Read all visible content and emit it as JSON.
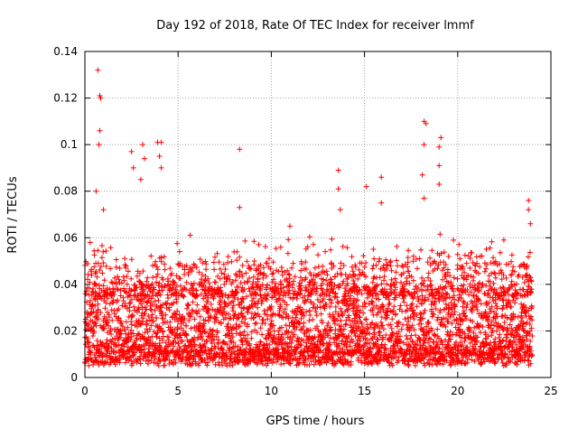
{
  "chart_data": {
    "type": "scatter",
    "title": "Day 192 of 2018, Rate Of TEC Index for receiver lmmf",
    "xlabel": "GPS time / hours",
    "ylabel": "ROTI / TECUs",
    "xlim": [
      0,
      25
    ],
    "ylim": [
      0,
      0.14
    ],
    "x_ticks": [
      0,
      5,
      10,
      15,
      20,
      25
    ],
    "x_tick_labels": [
      "0",
      "5",
      "10",
      "15",
      "20",
      "25"
    ],
    "y_ticks": [
      0,
      0.02,
      0.04,
      0.06,
      0.08,
      0.1,
      0.12,
      0.14
    ],
    "y_tick_labels": [
      "0",
      "0.02",
      "0.04",
      "0.06",
      "0.08",
      "0.1",
      "0.12",
      "0.14"
    ],
    "grid": true,
    "marker": "+",
    "marker_color": "#ff0000",
    "x_data_range": [
      0,
      24
    ],
    "baseline_range": [
      0.005,
      0.035
    ],
    "series": [
      {
        "name": "ROTI",
        "notable_points": [
          {
            "x": 0.7,
            "y": 0.132
          },
          {
            "x": 0.8,
            "y": 0.121
          },
          {
            "x": 0.85,
            "y": 0.12
          },
          {
            "x": 0.8,
            "y": 0.106
          },
          {
            "x": 0.75,
            "y": 0.1
          },
          {
            "x": 0.6,
            "y": 0.08
          },
          {
            "x": 1.0,
            "y": 0.072
          },
          {
            "x": 2.5,
            "y": 0.097
          },
          {
            "x": 2.6,
            "y": 0.09
          },
          {
            "x": 3.1,
            "y": 0.1
          },
          {
            "x": 3.2,
            "y": 0.094
          },
          {
            "x": 3.0,
            "y": 0.085
          },
          {
            "x": 3.9,
            "y": 0.101
          },
          {
            "x": 4.1,
            "y": 0.101
          },
          {
            "x": 4.0,
            "y": 0.095
          },
          {
            "x": 4.1,
            "y": 0.09
          },
          {
            "x": 8.3,
            "y": 0.098
          },
          {
            "x": 8.3,
            "y": 0.073
          },
          {
            "x": 11.0,
            "y": 0.065
          },
          {
            "x": 13.6,
            "y": 0.089
          },
          {
            "x": 13.6,
            "y": 0.081
          },
          {
            "x": 13.7,
            "y": 0.072
          },
          {
            "x": 15.1,
            "y": 0.082
          },
          {
            "x": 15.9,
            "y": 0.086
          },
          {
            "x": 15.9,
            "y": 0.075
          },
          {
            "x": 18.2,
            "y": 0.11
          },
          {
            "x": 18.3,
            "y": 0.109
          },
          {
            "x": 18.2,
            "y": 0.1
          },
          {
            "x": 18.1,
            "y": 0.087
          },
          {
            "x": 18.2,
            "y": 0.077
          },
          {
            "x": 19.1,
            "y": 0.103
          },
          {
            "x": 19.0,
            "y": 0.099
          },
          {
            "x": 19.0,
            "y": 0.091
          },
          {
            "x": 19.0,
            "y": 0.083
          },
          {
            "x": 23.8,
            "y": 0.076
          },
          {
            "x": 23.8,
            "y": 0.072
          },
          {
            "x": 23.9,
            "y": 0.066
          }
        ]
      }
    ]
  }
}
